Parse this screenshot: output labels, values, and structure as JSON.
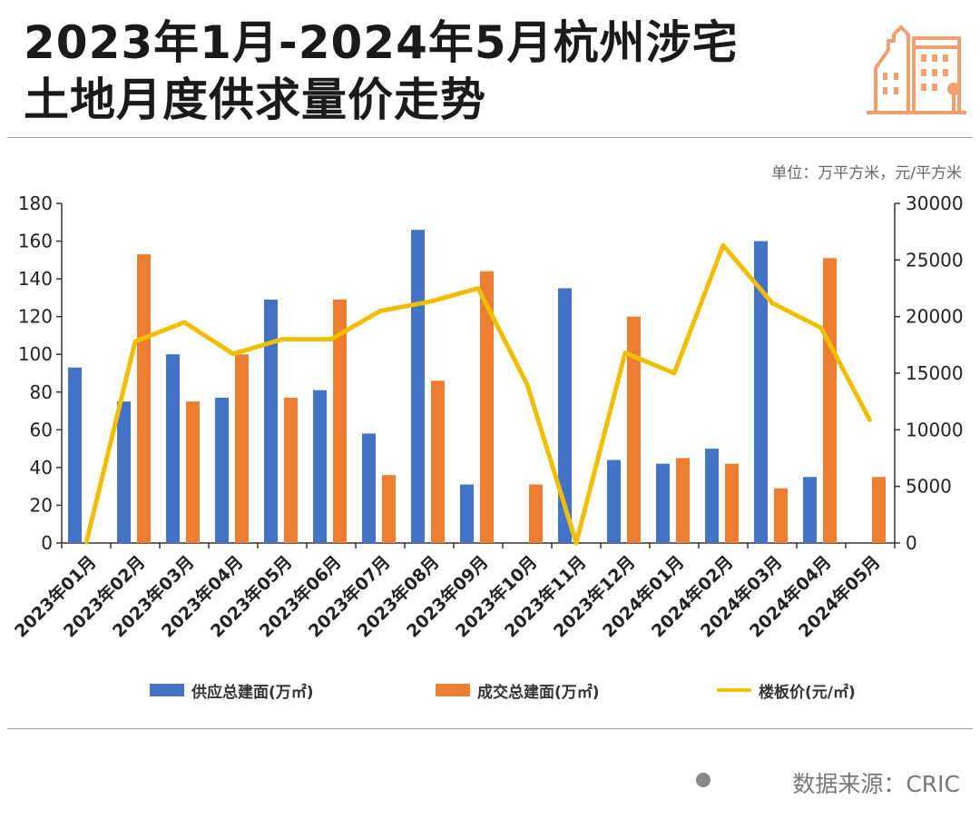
{
  "title": {
    "line1": "2023年1月-2024年5月杭州涉宅",
    "line2": "土地月度供求量价走势"
  },
  "unit_note": "单位：万平方米，元/平方米",
  "source": "数据来源：CRIC",
  "colors": {
    "supply": "#4472C4",
    "deal": "#ED7D31",
    "price": "#F0BE00",
    "logo": "#F0A070"
  },
  "icons": {
    "logo": "buildings-icon",
    "source_dot": "dot-icon"
  },
  "chart_data": {
    "type": "bar",
    "categories": [
      "2023年01月",
      "2023年02月",
      "2023年03月",
      "2023年04月",
      "2023年05月",
      "2023年06月",
      "2023年07月",
      "2023年08月",
      "2023年09月",
      "2023年10月",
      "2023年11月",
      "2023年12月",
      "2024年01月",
      "2024年02月",
      "2024年03月",
      "2024年04月",
      "2024年05月"
    ],
    "series": [
      {
        "name": "供应总建面(万㎡)",
        "type": "bar",
        "axis": "left",
        "values": [
          93,
          75,
          100,
          77,
          129,
          81,
          58,
          166,
          31,
          0,
          135,
          44,
          42,
          50,
          160,
          35,
          0
        ]
      },
      {
        "name": "成交总建面(万㎡)",
        "type": "bar",
        "axis": "left",
        "values": [
          0,
          153,
          75,
          100,
          77,
          129,
          36,
          86,
          144,
          31,
          0,
          120,
          45,
          42,
          29,
          151,
          35
        ]
      },
      {
        "name": "楼板价(元/㎡)",
        "type": "line",
        "axis": "right",
        "values": [
          0,
          17800,
          19500,
          16700,
          18000,
          18000,
          20500,
          21300,
          22500,
          14000,
          0,
          16800,
          15000,
          26300,
          21200,
          19000,
          10800
        ]
      }
    ],
    "ylim_left": [
      0,
      180
    ],
    "yticks_left": [
      "0",
      "20",
      "40",
      "60",
      "80",
      "100",
      "120",
      "140",
      "160",
      "180"
    ],
    "ylim_right": [
      0,
      30000
    ],
    "yticks_right": [
      "0",
      "5000",
      "10000",
      "15000",
      "20000",
      "25000",
      "30000"
    ],
    "grid": false,
    "legend_position": "bottom"
  }
}
